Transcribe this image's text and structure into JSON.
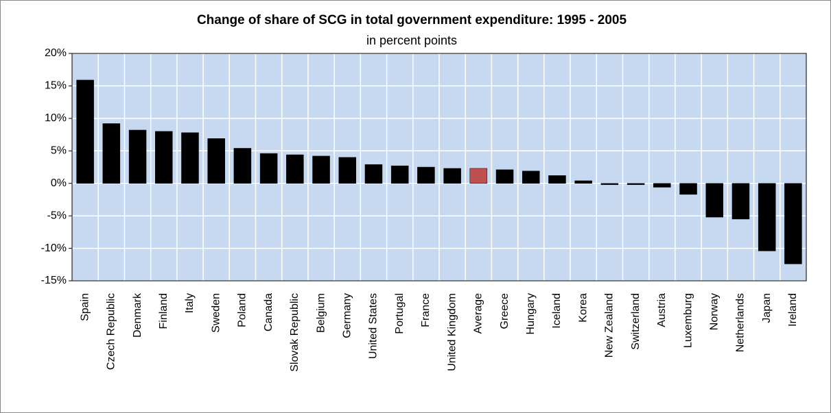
{
  "chart_data": {
    "type": "bar",
    "title": "Change of share of SCG in total government expenditure: 1995 - 2005",
    "subtitle": "in percent points",
    "categories": [
      "Spain",
      "Czech Republic",
      "Denmark",
      "Finland",
      "Italy",
      "Sweden",
      "Poland",
      "Canada",
      "Slovak Republic",
      "Belgium",
      "Germany",
      "United States",
      "Portugal",
      "France",
      "United Kingdom",
      "Average",
      "Greece",
      "Hungary",
      "Iceland",
      "Korea",
      "New Zealand",
      "Switzerland",
      "Austria",
      "Luxemburg",
      "Norway",
      "Netherlands",
      "Japan",
      "Ireland"
    ],
    "values": [
      15.9,
      9.2,
      8.2,
      8.0,
      7.8,
      6.9,
      5.4,
      4.6,
      4.4,
      4.2,
      4.0,
      2.9,
      2.7,
      2.5,
      2.3,
      2.3,
      2.1,
      1.9,
      1.2,
      0.4,
      -0.2,
      -0.2,
      -0.6,
      -1.7,
      -5.2,
      -5.5,
      -10.4,
      -12.4
    ],
    "colors": [
      "#000000",
      "#000000",
      "#000000",
      "#000000",
      "#000000",
      "#000000",
      "#000000",
      "#000000",
      "#000000",
      "#000000",
      "#000000",
      "#000000",
      "#000000",
      "#000000",
      "#000000",
      "#c0504d",
      "#000000",
      "#000000",
      "#000000",
      "#000000",
      "#000000",
      "#000000",
      "#000000",
      "#000000",
      "#000000",
      "#000000",
      "#000000",
      "#000000"
    ],
    "ylim": [
      -15,
      20
    ],
    "yticks": [
      {
        "value": -15,
        "label": "-15%"
      },
      {
        "value": -10,
        "label": "-10%"
      },
      {
        "value": -5,
        "label": "-5%"
      },
      {
        "value": 0,
        "label": "0%"
      },
      {
        "value": 5,
        "label": "5%"
      },
      {
        "value": 10,
        "label": "10%"
      },
      {
        "value": 15,
        "label": "15%"
      },
      {
        "value": 20,
        "label": "20%"
      }
    ],
    "grid": true
  }
}
